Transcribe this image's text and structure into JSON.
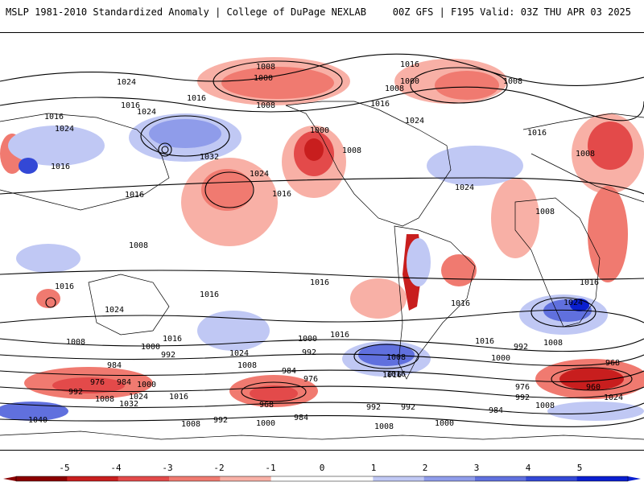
{
  "header": {
    "left_title": "MSLP 1981-2010 Standardized Anomaly | College of DuPage NEXLAB",
    "right_title": "00Z GFS | F195 Valid: 03Z THU APR 03 2025"
  },
  "colorbar": {
    "ticks": [
      "-5",
      "-4",
      "-3",
      "-2",
      "-1",
      "0",
      "1",
      "2",
      "3",
      "4",
      "5"
    ],
    "colors_negative": [
      "#8b0000",
      "#c81e1e",
      "#e34a4a",
      "#f07a70",
      "#f8b0a6"
    ],
    "colors_positive": [
      "#c0c8f4",
      "#8f9cea",
      "#6070de",
      "#3348d6",
      "#0a1fd0"
    ]
  },
  "contour_labels": [
    "1008",
    "1016",
    "1024",
    "1000",
    "1016",
    "1008",
    "1000",
    "1008",
    "1016",
    "1024",
    "1016",
    "1024",
    "1016",
    "1024",
    "1032",
    "1000",
    "1008",
    "1016",
    "1016",
    "1024",
    "1016",
    "1016",
    "1024",
    "1008",
    "1008",
    "1008",
    "1008",
    "1016",
    "1016",
    "1016",
    "1024",
    "1024",
    "1016",
    "1016",
    "1016",
    "1008",
    "1000",
    "992",
    "1024",
    "1000",
    "992",
    "1016",
    "1008",
    "1016",
    "1016",
    "1000",
    "992",
    "1008",
    "984",
    "968",
    "976",
    "984",
    "1000",
    "992",
    "1008",
    "1032",
    "1024",
    "1016",
    "984",
    "976",
    "968",
    "1008",
    "992",
    "1016",
    "992",
    "992",
    "976",
    "960",
    "1024",
    "1040",
    "1008",
    "992",
    "1000",
    "984",
    "1008",
    "1000",
    "984",
    "1008"
  ]
}
